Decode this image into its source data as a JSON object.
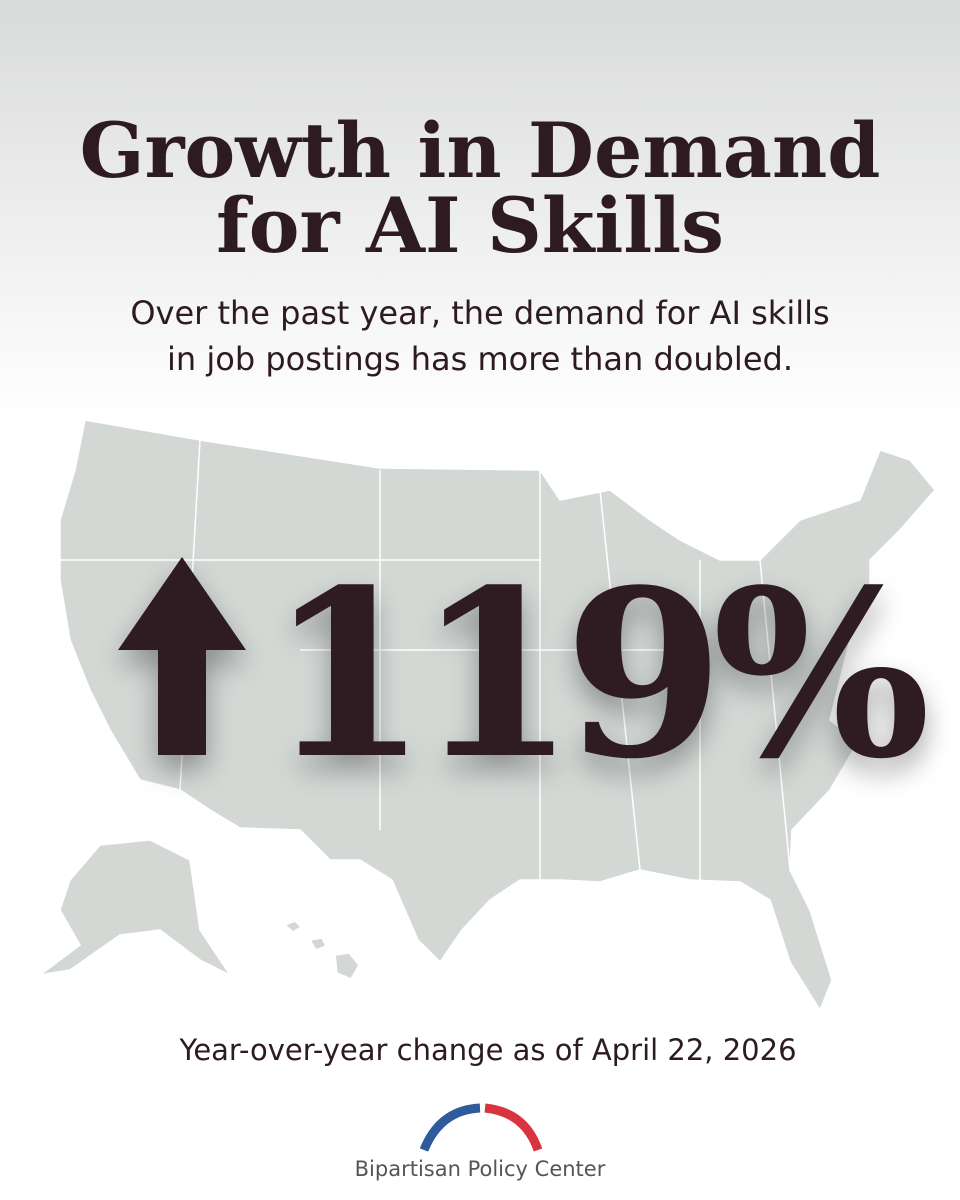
{
  "header": {
    "title_lines": [
      "Growth in Demand",
      "for AI Skills"
    ],
    "subtitle_lines": [
      "Over the past year, the demand for AI skills",
      "in job postings has more than doubled."
    ]
  },
  "statistic": "119%",
  "footnote": "Year-over-year change as of April 22, 2026",
  "logo": {
    "name": "Bipartisan Policy Center"
  }
}
